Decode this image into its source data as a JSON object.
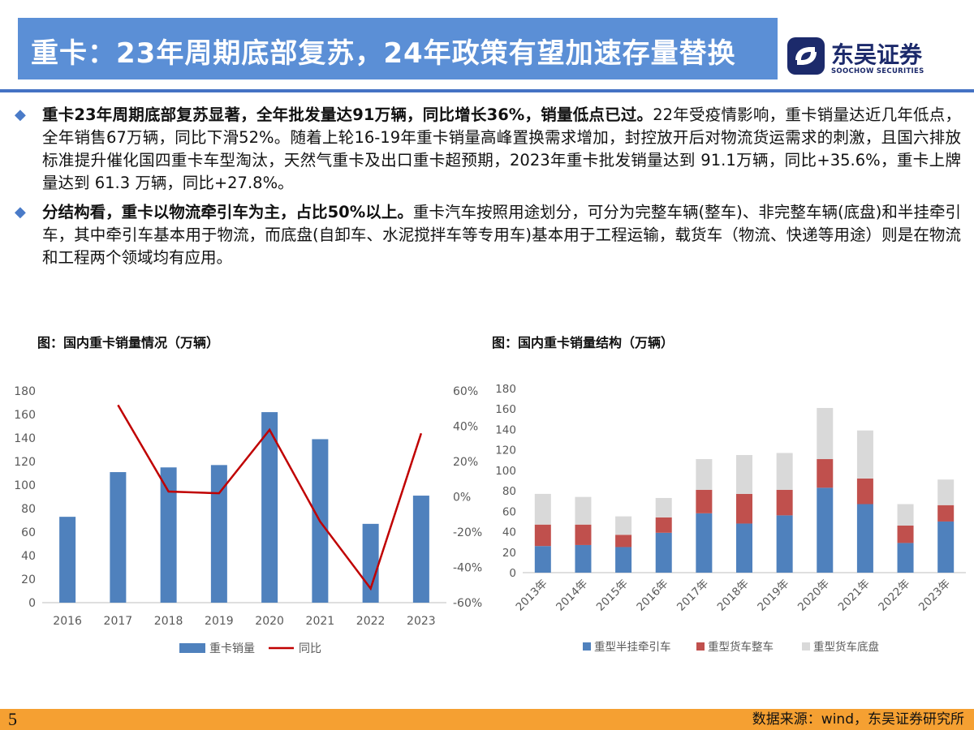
{
  "header": {
    "title": "重卡：23年周期底部复苏，24年政策有望加速存量替换",
    "logo_cn": "东吴证券",
    "logo_en": "SOOCHOW SECURITIES"
  },
  "bullets": [
    {
      "bold": "重卡23年周期底部复苏显著，全年批发量达91万辆，同比增长36%，销量低点已过。",
      "text": "22年受疫情影响，重卡销量达近几年低点，全年销售67万辆，同比下滑52%。随着上轮16-19年重卡销量高峰置换需求增加，封控放开后对物流货运需求的刺激，且国六排放标准提升催化国四重卡车型淘汰，天然气重卡及出口重卡超预期，2023年重卡批发销量达到 91.1万辆，同比+35.6%，重卡上牌量达到 61.3 万辆，同比+27.8%。"
    },
    {
      "bold": "分结构看，重卡以物流牵引车为主，占比50%以上。",
      "text": "重卡汽车按照用途划分，可分为完整车辆(整车)、非完整车辆(底盘)和半挂牵引车，其中牵引车基本用于物流，而底盘(自卸车、水泥搅拌车等专用车)基本用于工程运输，载货车（物流、快递等用途）则是在物流和工程两个领域均有应用。"
    }
  ],
  "charts": {
    "left_title": "图：国内重卡销量情况（万辆）",
    "right_title": "图：国内重卡销量结构（万辆）"
  },
  "footer": {
    "page": "5",
    "source": "数据来源：wind，东吴证券研究所"
  },
  "colors": {
    "accent_blue": "#4f81bd",
    "line_red": "#c00000",
    "stack_blue": "#4f81bd",
    "stack_red": "#c0504d",
    "stack_gray": "#d9d9d9",
    "title_bar": "#5b8fd6",
    "bottom_bar": "#f5a032"
  },
  "chart_data": [
    {
      "type": "bar",
      "categories": [
        "2016",
        "2017",
        "2018",
        "2019",
        "2020",
        "2021",
        "2022",
        "2023"
      ],
      "series": [
        {
          "name": "重卡销量",
          "type": "bar",
          "axis": "left",
          "values": [
            73,
            111,
            115,
            117,
            162,
            139,
            67,
            91
          ]
        },
        {
          "name": "同比",
          "type": "line",
          "axis": "right",
          "values": [
            null,
            52,
            3,
            2,
            38,
            -14,
            -52,
            36
          ]
        }
      ],
      "ylim": [
        0,
        180
      ],
      "yticks": [
        0,
        20,
        40,
        60,
        80,
        100,
        120,
        140,
        160,
        180
      ],
      "y2lim": [
        -60,
        60
      ],
      "y2ticks": [
        "-60%",
        "-40%",
        "-20%",
        "0%",
        "20%",
        "40%",
        "60%"
      ],
      "legend": "bottom",
      "grid": false
    },
    {
      "type": "bar",
      "stacked": true,
      "categories": [
        "2013年",
        "2014年",
        "2015年",
        "2016年",
        "2017年",
        "2018年",
        "2019年",
        "2020年",
        "2021年",
        "2022年",
        "2023年"
      ],
      "series": [
        {
          "name": "重型半挂牵引车",
          "values": [
            26,
            27,
            25,
            39,
            58,
            48,
            56,
            83,
            67,
            29,
            50
          ]
        },
        {
          "name": "重型货车整车",
          "values": [
            21,
            20,
            12,
            15,
            23,
            29,
            25,
            28,
            25,
            17,
            16
          ]
        },
        {
          "name": "重型货车底盘",
          "values": [
            30,
            27,
            18,
            19,
            30,
            38,
            36,
            50,
            47,
            21,
            25
          ]
        }
      ],
      "ylim": [
        0,
        180
      ],
      "yticks": [
        0,
        20,
        40,
        60,
        80,
        100,
        120,
        140,
        160,
        180
      ],
      "legend": "bottom",
      "grid": false
    }
  ]
}
